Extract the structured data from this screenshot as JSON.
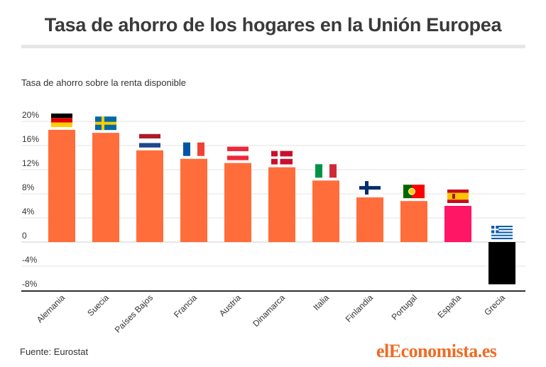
{
  "header": {
    "title": "Tasa de ahorro de los hogares en la Unión Europea"
  },
  "footer": {
    "source": "Fuente: Eurostat",
    "brand": "elEconomista.es"
  },
  "chart_data": {
    "type": "bar",
    "title": "Tasa de ahorro de los hogares en la Unión Europea",
    "ylabel": "Tasa de ahorro sobre la renta disponible",
    "xlabel": "",
    "ylim": [
      -8,
      20
    ],
    "y_ticks": [
      20,
      16,
      12,
      8,
      4,
      0,
      -4,
      -8
    ],
    "y_tick_labels": [
      "20%",
      "16%",
      "12%",
      "8%",
      "4%",
      "0",
      "-4%",
      "-8%"
    ],
    "grid": true,
    "categories": [
      "Alemania",
      "Suecia",
      "Países Bajos",
      "Francia",
      "Austria",
      "Dinamarca",
      "Italia",
      "Finlandia",
      "Portugal",
      "España",
      "Grecia"
    ],
    "values": [
      18.6,
      18.1,
      15.2,
      13.8,
      13.1,
      12.4,
      10.2,
      7.4,
      6.8,
      6.0,
      -7.0
    ],
    "bar_colors": [
      "#ff6d3b",
      "#ff6d3b",
      "#ff6d3b",
      "#ff6d3b",
      "#ff6d3b",
      "#ff6d3b",
      "#ff6d3b",
      "#ff6d3b",
      "#ff6d3b",
      "#ff1665",
      "#000000"
    ],
    "flags": [
      "germany-flag-icon",
      "sweden-flag-icon",
      "netherlands-flag-icon",
      "france-flag-icon",
      "austria-flag-icon",
      "denmark-flag-icon",
      "italy-flag-icon",
      "finland-flag-icon",
      "portugal-flag-icon",
      "spain-flag-icon",
      "greece-flag-icon"
    ]
  }
}
